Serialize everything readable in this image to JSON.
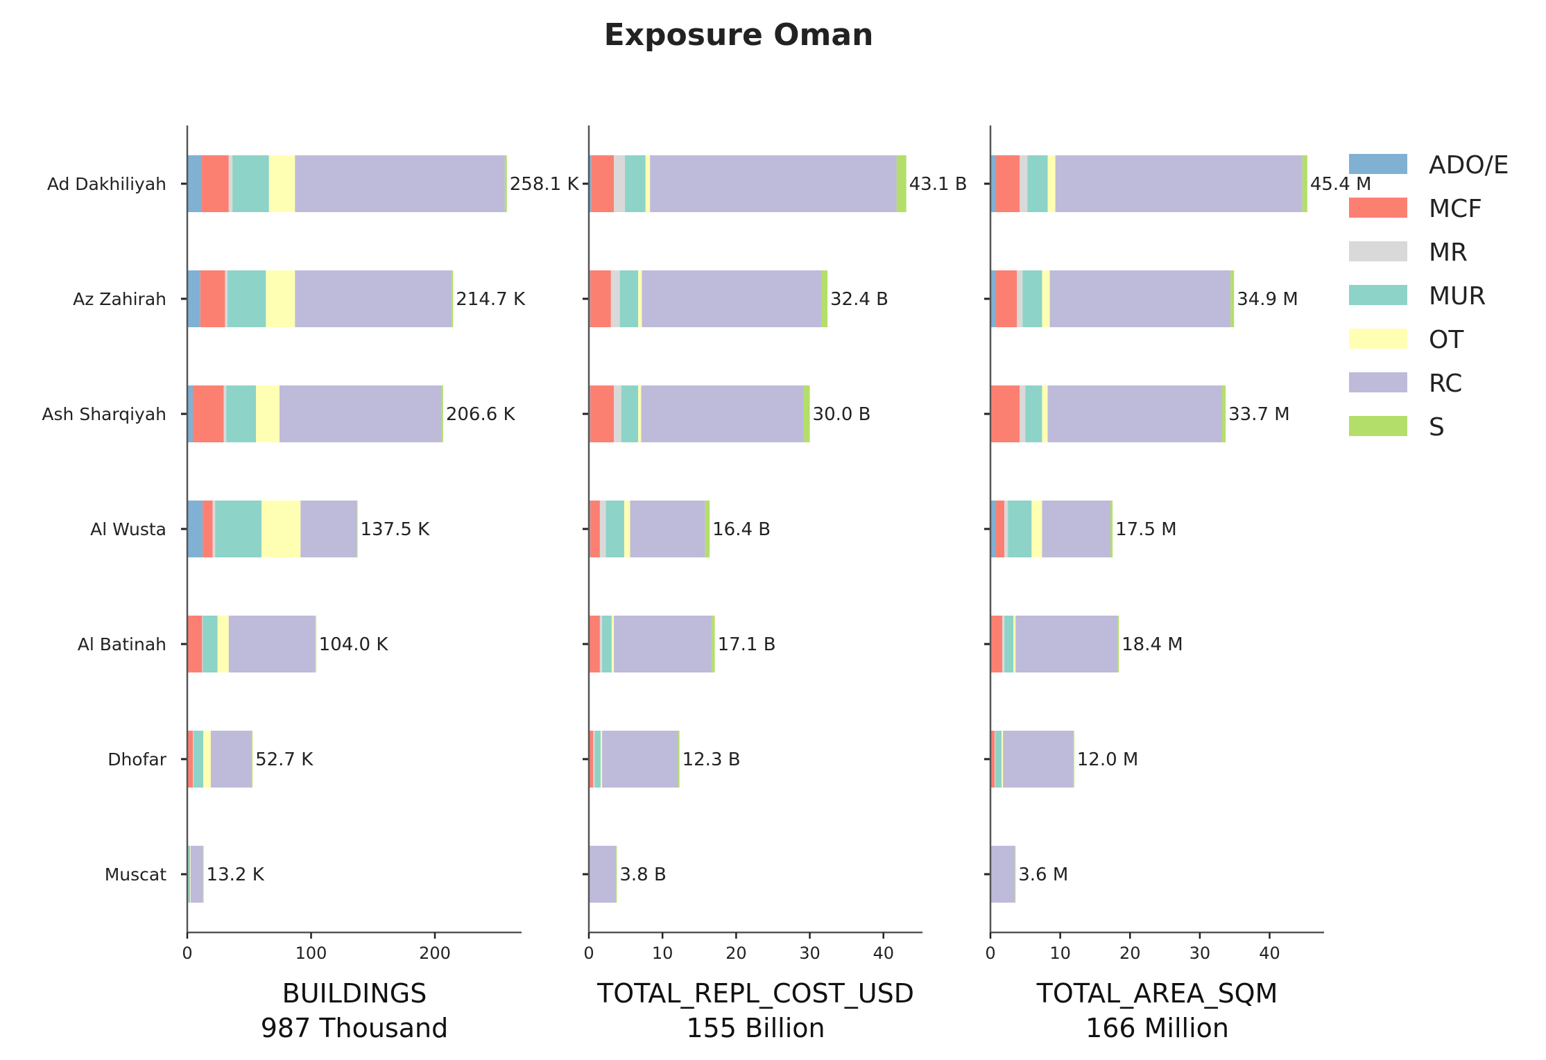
{
  "chart_data": {
    "type": "bar",
    "orientation": "horizontal",
    "stacked": true,
    "title": "Exposure Oman",
    "categories": [
      "Ad Dakhiliyah",
      "Az Zahirah",
      "Ash Sharqiyah",
      "Al Wusta",
      "Al Batinah",
      "Dhofar",
      "Muscat"
    ],
    "legend": {
      "placement": "right",
      "entries": [
        {
          "name": "ADO/E",
          "color": "#80b1d3"
        },
        {
          "name": "MCF",
          "color": "#fb8072"
        },
        {
          "name": "MR",
          "color": "#d9d9d9"
        },
        {
          "name": "MUR",
          "color": "#8dd3c7"
        },
        {
          "name": "OT",
          "color": "#ffffb3"
        },
        {
          "name": "RC",
          "color": "#bebada"
        },
        {
          "name": "S",
          "color": "#b3de69"
        }
      ]
    },
    "panels": [
      {
        "xlabel": "BUILDINGS",
        "xlabel_total": "987 Thousand",
        "xlim": [
          0,
          270
        ],
        "xticks": [
          0,
          100,
          200
        ],
        "totals_text": [
          "258.1 K",
          "214.7 K",
          "206.6 K",
          "137.5 K",
          "104.0 K",
          "52.7 K",
          "13.2 K"
        ],
        "series": [
          {
            "name": "ADO/E",
            "values": [
              11.5,
              10.5,
              4.5,
              12.5,
              0.5,
              0.5,
              0.3
            ]
          },
          {
            "name": "MCF",
            "values": [
              22,
              20,
              25,
              8,
              11.5,
              4,
              0.3
            ]
          },
          {
            "name": "MR",
            "values": [
              3,
              2,
              2,
              2,
              0.5,
              0.5,
              0.2
            ]
          },
          {
            "name": "MUR",
            "values": [
              29.5,
              31,
              24,
              37.5,
              12,
              8,
              1.5
            ]
          },
          {
            "name": "OT",
            "values": [
              21,
              23.5,
              19,
              31.5,
              9,
              6,
              0.4
            ]
          },
          {
            "name": "RC",
            "values": [
              169.5,
              126.5,
              130.5,
              45.5,
              70,
              33,
              10
            ]
          },
          {
            "name": "S",
            "values": [
              1.6,
              1.2,
              1.6,
              0.5,
              0.5,
              0.7,
              0.5
            ]
          }
        ]
      },
      {
        "xlabel": "TOTAL_REPL_COST_USD",
        "xlabel_total": "155 Billion",
        "xlim": [
          0,
          45.3
        ],
        "xticks": [
          0,
          10,
          20,
          30,
          40
        ],
        "totals_text": [
          "43.1 B",
          "32.4 B",
          "30.0 B",
          "16.4 B",
          "17.1 B",
          "12.3 B",
          "3.8 B"
        ],
        "series": [
          {
            "name": "ADO/E",
            "values": [
              0.3,
              0.2,
              0.2,
              0.2,
              0.1,
              0.1,
              0.0
            ]
          },
          {
            "name": "MCF",
            "values": [
              3.1,
              2.8,
              3.2,
              1.3,
              1.4,
              0.5,
              0.0
            ]
          },
          {
            "name": "MR",
            "values": [
              1.5,
              1.2,
              1.0,
              0.8,
              0.3,
              0.2,
              0.0
            ]
          },
          {
            "name": "MUR",
            "values": [
              2.8,
              2.5,
              2.3,
              2.5,
              1.3,
              0.8,
              0.1
            ]
          },
          {
            "name": "OT",
            "values": [
              0.6,
              0.5,
              0.4,
              0.8,
              0.3,
              0.2,
              0.0
            ]
          },
          {
            "name": "RC",
            "values": [
              33.5,
              24.4,
              22.1,
              10.2,
              13.3,
              10.3,
              3.6
            ]
          },
          {
            "name": "S",
            "values": [
              1.3,
              0.8,
              0.8,
              0.6,
              0.4,
              0.2,
              0.1
            ]
          }
        ]
      },
      {
        "xlabel": "TOTAL_AREA_SQM",
        "xlabel_total": "166 Million",
        "xlim": [
          0,
          47.8
        ],
        "xticks": [
          0,
          10,
          20,
          30,
          40
        ],
        "totals_text": [
          "45.4 M",
          "34.9 M",
          "33.7 M",
          "17.5 M",
          "18.4 M",
          "12.0 M",
          "3.6 M"
        ],
        "series": [
          {
            "name": "ADO/E",
            "values": [
              0.8,
              0.8,
              0.2,
              0.8,
              0.1,
              0.1,
              0.0
            ]
          },
          {
            "name": "MCF",
            "values": [
              3.4,
              3.0,
              4.0,
              1.2,
              1.6,
              0.5,
              0.0
            ]
          },
          {
            "name": "MR",
            "values": [
              1.1,
              0.8,
              0.8,
              0.5,
              0.3,
              0.1,
              0.0
            ]
          },
          {
            "name": "MUR",
            "values": [
              2.9,
              2.8,
              2.4,
              3.4,
              1.3,
              0.9,
              0.1
            ]
          },
          {
            "name": "OT",
            "values": [
              1.1,
              1.1,
              0.8,
              1.5,
              0.3,
              0.2,
              0.0
            ]
          },
          {
            "name": "RC",
            "values": [
              35.4,
              25.9,
              25.0,
              9.8,
              14.6,
              10.1,
              3.4
            ]
          },
          {
            "name": "S",
            "values": [
              0.7,
              0.5,
              0.5,
              0.3,
              0.2,
              0.1,
              0.1
            ]
          }
        ]
      }
    ]
  }
}
